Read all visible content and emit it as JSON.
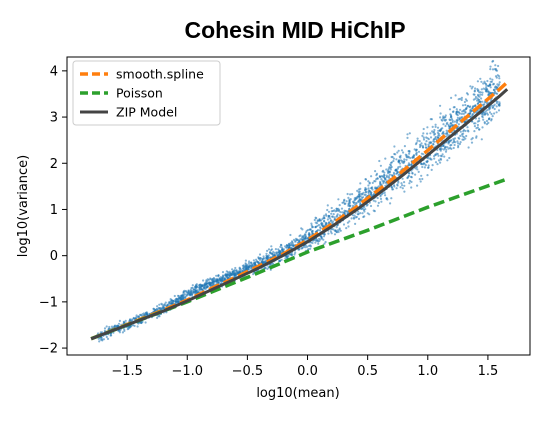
{
  "chart_data": {
    "type": "scatter",
    "title": "Cohesin MID HiChIP",
    "xlabel": "log10(mean)",
    "ylabel": "log10(variance)",
    "xlim": [
      -2.0,
      1.85
    ],
    "ylim": [
      -2.15,
      4.3
    ],
    "xticks": [
      {
        "value": -1.5,
        "label": "−1.5"
      },
      {
        "value": -1.0,
        "label": "−1.0"
      },
      {
        "value": -0.5,
        "label": "−0.5"
      },
      {
        "value": 0.0,
        "label": "0.0"
      },
      {
        "value": 0.5,
        "label": "0.5"
      },
      {
        "value": 1.0,
        "label": "1.0"
      },
      {
        "value": 1.5,
        "label": "1.5"
      }
    ],
    "yticks": [
      {
        "value": -2,
        "label": "−2"
      },
      {
        "value": -1,
        "label": "−1"
      },
      {
        "value": 0,
        "label": "0"
      },
      {
        "value": 1,
        "label": "1"
      },
      {
        "value": 2,
        "label": "2"
      },
      {
        "value": 3,
        "label": "3"
      },
      {
        "value": 4,
        "label": "4"
      }
    ],
    "grid": false,
    "legend_position": "top-left",
    "scatter_color": "#1f77b4",
    "scatter_points_approx": [
      [
        -1.8,
        -1.8
      ],
      [
        -1.5,
        -1.5
      ],
      [
        -1.2,
        -1.15
      ],
      [
        -1.0,
        -0.85
      ],
      [
        -0.8,
        -0.6
      ],
      [
        -0.5,
        -0.3
      ],
      [
        -0.3,
        -0.05
      ],
      [
        0.0,
        0.35
      ],
      [
        0.3,
        0.9
      ],
      [
        0.5,
        1.3
      ],
      [
        0.7,
        1.7
      ],
      [
        1.0,
        2.3
      ],
      [
        1.2,
        2.75
      ],
      [
        1.4,
        3.2
      ],
      [
        1.6,
        3.6
      ],
      [
        1.65,
        3.7
      ]
    ],
    "series": [
      {
        "name": "smooth.spline",
        "style": "dashed",
        "color": "#ff7f0e",
        "points": [
          [
            -1.8,
            -1.8
          ],
          [
            -1.5,
            -1.49
          ],
          [
            -1.2,
            -1.18
          ],
          [
            -1.0,
            -0.96
          ],
          [
            -0.8,
            -0.71
          ],
          [
            -0.6,
            -0.47
          ],
          [
            -0.4,
            -0.22
          ],
          [
            -0.2,
            0.04
          ],
          [
            0.0,
            0.34
          ],
          [
            0.2,
            0.68
          ],
          [
            0.4,
            1.04
          ],
          [
            0.6,
            1.44
          ],
          [
            0.8,
            1.85
          ],
          [
            1.0,
            2.28
          ],
          [
            1.2,
            2.73
          ],
          [
            1.4,
            3.17
          ],
          [
            1.6,
            3.61
          ],
          [
            1.66,
            3.75
          ]
        ]
      },
      {
        "name": "Poisson",
        "style": "dashed",
        "color": "#2ca02c",
        "points": [
          [
            -1.8,
            -1.8
          ],
          [
            -1.0,
            -1.0
          ],
          [
            -0.5,
            -0.47
          ],
          [
            0.0,
            0.08
          ],
          [
            0.5,
            0.55
          ],
          [
            1.0,
            1.05
          ],
          [
            1.66,
            1.66
          ]
        ]
      },
      {
        "name": "ZIP Model",
        "style": "solid",
        "color": "#444444",
        "points": [
          [
            -1.8,
            -1.8
          ],
          [
            -1.5,
            -1.5
          ],
          [
            -1.2,
            -1.2
          ],
          [
            -1.0,
            -0.98
          ],
          [
            -0.8,
            -0.74
          ],
          [
            -0.6,
            -0.5
          ],
          [
            -0.4,
            -0.26
          ],
          [
            -0.2,
            0.01
          ],
          [
            0.0,
            0.3
          ],
          [
            0.2,
            0.63
          ],
          [
            0.4,
            0.98
          ],
          [
            0.6,
            1.36
          ],
          [
            0.8,
            1.76
          ],
          [
            1.0,
            2.18
          ],
          [
            1.2,
            2.6
          ],
          [
            1.4,
            3.03
          ],
          [
            1.6,
            3.46
          ],
          [
            1.66,
            3.6
          ]
        ]
      }
    ]
  }
}
